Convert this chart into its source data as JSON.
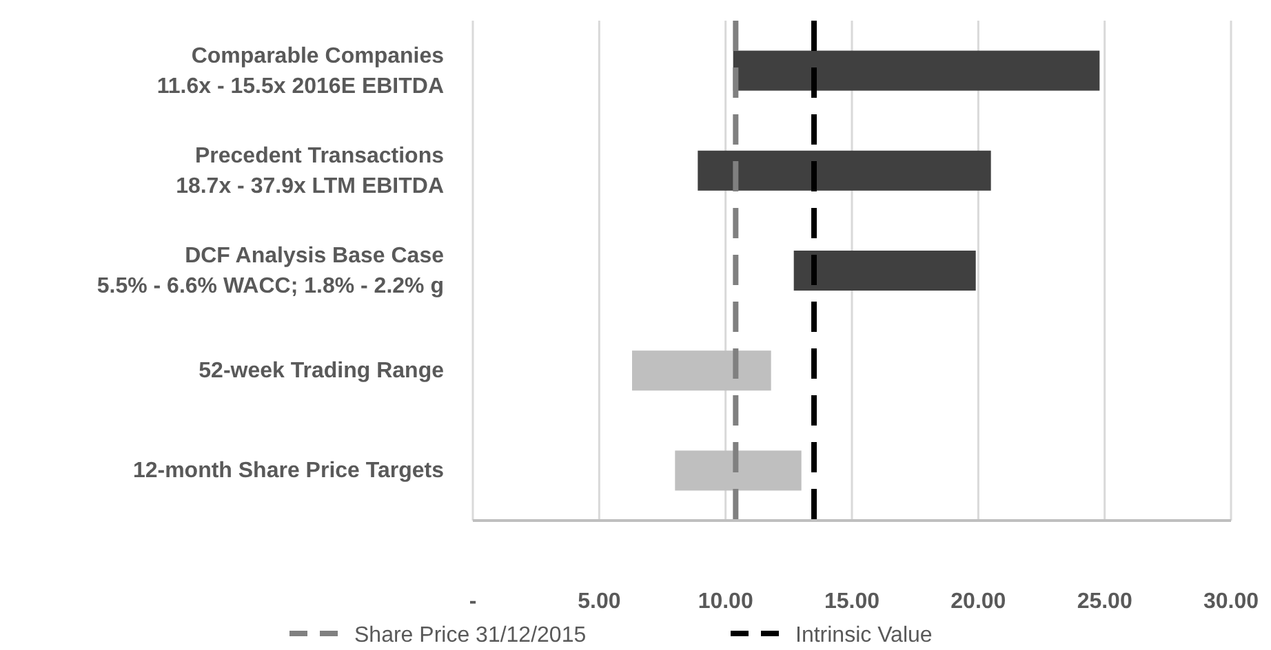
{
  "chart_data": {
    "type": "bar",
    "orientation": "horizontal",
    "categories": [
      "Comparable Companies\n11.6x - 15.5x 2016E EBITDA",
      "Precedent Transactions\n18.7x - 37.9x LTM EBITDA",
      "DCF Analysis Base Case\n5.5% - 6.6% WACC; 1.8% - 2.2% g",
      "52-week Trading Range",
      "12-month Share Price Targets"
    ],
    "base": [
      10.3,
      8.9,
      12.7,
      6.3,
      8.0
    ],
    "values": [
      14.5,
      11.6,
      7.2,
      5.5,
      5.0
    ],
    "colors": [
      "#404040",
      "#404040",
      "#404040",
      "#bfbfbf",
      "#bfbfbf"
    ],
    "xlim": [
      0,
      30
    ],
    "xticks": [
      {
        "value": 0,
        "label": "-"
      },
      {
        "value": 5,
        "label": "5.00"
      },
      {
        "value": 10,
        "label": "10.00"
      },
      {
        "value": 15,
        "label": "15.00"
      },
      {
        "value": 20,
        "label": "20.00"
      },
      {
        "value": 25,
        "label": "25.00"
      },
      {
        "value": 30,
        "label": "30.00"
      }
    ],
    "grid": "x",
    "ref_lines": [
      {
        "axis": "x",
        "value": 10.4,
        "label": "Share Price 31/12/2015",
        "color": "#808080",
        "line_style": "dashed"
      },
      {
        "axis": "x",
        "value": 13.5,
        "label": "Intrinsic Value",
        "color": "#000000",
        "line_style": "dashed"
      }
    ],
    "legend": "bottom"
  }
}
